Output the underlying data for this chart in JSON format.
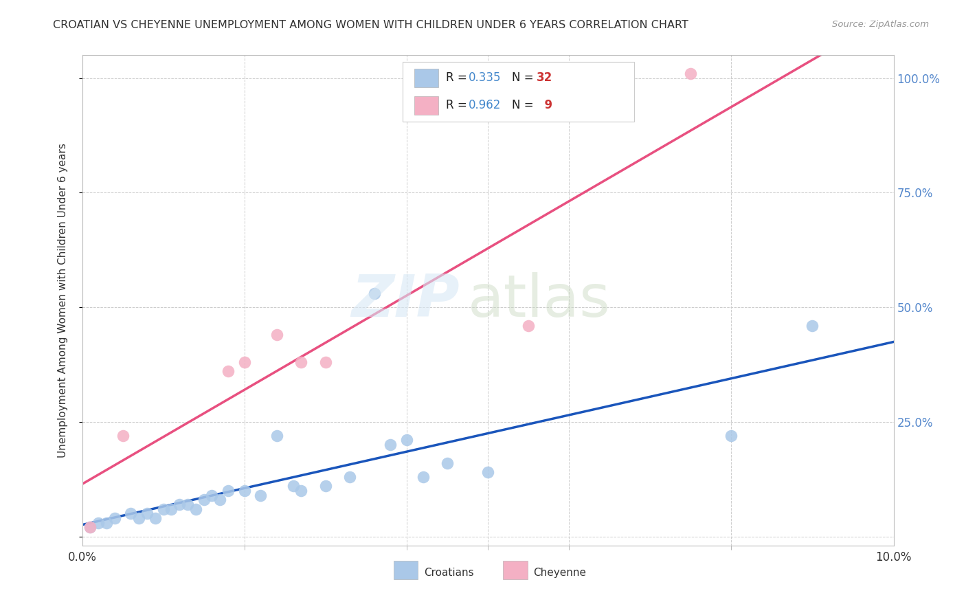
{
  "title": "CROATIAN VS CHEYENNE UNEMPLOYMENT AMONG WOMEN WITH CHILDREN UNDER 6 YEARS CORRELATION CHART",
  "source": "Source: ZipAtlas.com",
  "ylabel": "Unemployment Among Women with Children Under 6 years",
  "xlim": [
    0.0,
    0.1
  ],
  "ylim": [
    -0.02,
    1.05
  ],
  "croatian_R": 0.335,
  "croatian_N": 32,
  "cheyenne_R": 0.962,
  "cheyenne_N": 9,
  "croatian_color": "#aac8e8",
  "cheyenne_color": "#f4b0c4",
  "croatian_line_color": "#1a55bb",
  "cheyenne_line_color": "#e85080",
  "legend_label_croatian": "Croatians",
  "legend_label_cheyenne": "Cheyenne",
  "r_color": "#4488cc",
  "n_color": "#cc3333",
  "background_color": "#ffffff",
  "grid_color": "#cccccc",
  "title_color": "#333333",
  "label_color": "#333333",
  "axis_tick_color": "#5588cc",
  "croatian_x": [
    0.001,
    0.002,
    0.003,
    0.004,
    0.006,
    0.007,
    0.008,
    0.009,
    0.01,
    0.011,
    0.012,
    0.013,
    0.014,
    0.015,
    0.016,
    0.017,
    0.018,
    0.02,
    0.022,
    0.024,
    0.026,
    0.027,
    0.03,
    0.033,
    0.036,
    0.038,
    0.04,
    0.042,
    0.045,
    0.05,
    0.08,
    0.09
  ],
  "croatian_y": [
    0.02,
    0.03,
    0.03,
    0.04,
    0.05,
    0.04,
    0.05,
    0.04,
    0.06,
    0.06,
    0.07,
    0.07,
    0.06,
    0.08,
    0.09,
    0.08,
    0.1,
    0.1,
    0.09,
    0.22,
    0.11,
    0.1,
    0.11,
    0.13,
    0.53,
    0.2,
    0.21,
    0.13,
    0.16,
    0.14,
    0.22,
    0.46
  ],
  "cheyenne_x": [
    0.001,
    0.005,
    0.018,
    0.02,
    0.024,
    0.027,
    0.03,
    0.055,
    0.075
  ],
  "cheyenne_y": [
    0.02,
    0.22,
    0.36,
    0.38,
    0.44,
    0.38,
    0.38,
    0.46,
    1.01
  ]
}
